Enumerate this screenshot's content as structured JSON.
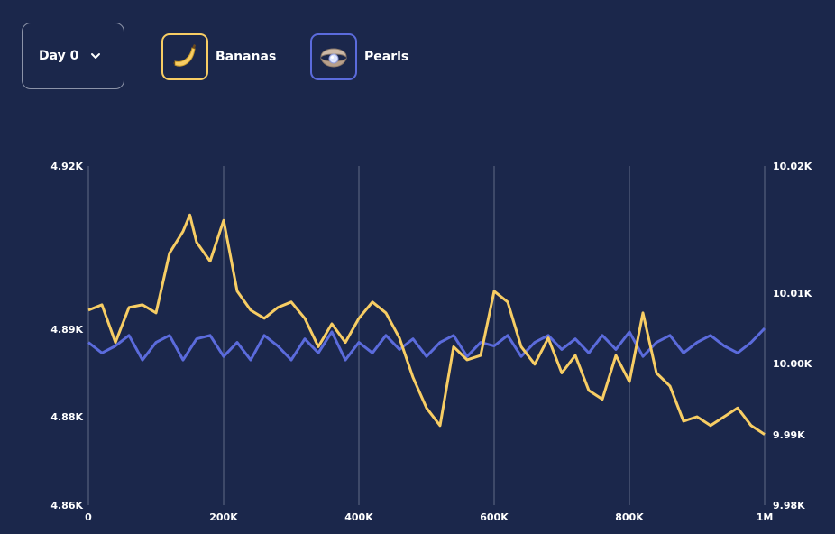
{
  "controls": {
    "day_label": "Day 0",
    "day_icon": "chevron-down-icon"
  },
  "legend": [
    {
      "label": "Bananas",
      "icon": "banana-icon",
      "color": "#f7cd64"
    },
    {
      "label": "Pearls",
      "icon": "pearl-oyster-icon",
      "color": "#5b6bdc"
    }
  ],
  "colors": {
    "background": "#1b274b",
    "grid": "#56607d",
    "bananas": "#f7cd64",
    "pearls": "#5b6bdc"
  },
  "chart_data": {
    "type": "line",
    "title": "",
    "xlabel": "",
    "ylabel": "",
    "xlim": [
      0,
      1000000
    ],
    "x_ticks": [
      0,
      200000,
      400000,
      600000,
      800000,
      1000000
    ],
    "x_tick_labels": [
      "0",
      "200K",
      "400K",
      "600K",
      "800K",
      "1M"
    ],
    "grid": "vertical",
    "y_left": {
      "series": "Bananas",
      "ticks": [
        4860,
        4880,
        4890,
        4920
      ],
      "tick_labels": [
        "4.86K",
        "4.88K",
        "4.89K",
        "4.92K"
      ]
    },
    "y_right": {
      "series": "Pearls",
      "ticks": [
        9980,
        9990,
        10000,
        10010,
        10020
      ],
      "tick_labels": [
        "9.98K",
        "9.99K",
        "10.00K",
        "10.01K",
        "10.02K"
      ]
    },
    "series": [
      {
        "name": "Bananas",
        "axis": "left",
        "x": [
          0,
          20000,
          40000,
          60000,
          80000,
          100000,
          120000,
          140000,
          150000,
          160000,
          180000,
          200000,
          220000,
          240000,
          260000,
          280000,
          300000,
          320000,
          340000,
          360000,
          380000,
          400000,
          420000,
          440000,
          460000,
          480000,
          500000,
          520000,
          540000,
          560000,
          580000,
          600000,
          620000,
          640000,
          660000,
          680000,
          700000,
          720000,
          740000,
          760000,
          780000,
          800000,
          820000,
          840000,
          860000,
          880000,
          900000,
          920000,
          940000,
          960000,
          980000,
          1000000
        ],
        "values": [
          4893.5,
          4894.5,
          4888.5,
          4894.0,
          4894.5,
          4893.0,
          4904.0,
          4908.0,
          4911.0,
          4906.0,
          4902.5,
          4910.0,
          4897.0,
          4893.5,
          4892.0,
          4894.0,
          4895.0,
          4892.0,
          4888.0,
          4891.0,
          4888.5,
          4892.0,
          4895.0,
          4893.0,
          4889.0,
          4884.5,
          4881.0,
          4878.0,
          4888.0,
          4886.5,
          4887.0,
          4897.0,
          4895.0,
          4888.0,
          4886.0,
          4889.0,
          4885.0,
          4887.0,
          4883.0,
          4882.0,
          4887.0,
          4884.0,
          4893.0,
          4885.0,
          4883.5,
          4879.0,
          4880.0,
          4878.0,
          4880.0,
          4881.0,
          4878.0,
          4876.0
        ]
      },
      {
        "name": "Pearls",
        "axis": "right",
        "x": [
          0,
          20000,
          40000,
          60000,
          80000,
          100000,
          120000,
          140000,
          160000,
          180000,
          200000,
          220000,
          240000,
          260000,
          280000,
          300000,
          320000,
          340000,
          360000,
          380000,
          400000,
          420000,
          440000,
          460000,
          480000,
          500000,
          520000,
          540000,
          560000,
          580000,
          600000,
          620000,
          640000,
          660000,
          680000,
          700000,
          720000,
          740000,
          760000,
          780000,
          800000,
          820000,
          840000,
          860000,
          880000,
          900000,
          920000,
          940000,
          960000,
          980000,
          1000000
        ],
        "values": [
          10003.0,
          10001.5,
          10002.5,
          10004.0,
          10000.5,
          10003.0,
          10004.0,
          10000.5,
          10003.5,
          10004.0,
          10001.0,
          10003.0,
          10000.5,
          10004.0,
          10002.5,
          10000.5,
          10003.5,
          10001.5,
          10004.5,
          10000.5,
          10003.0,
          10001.5,
          10004.0,
          10002.0,
          10003.5,
          10001.0,
          10003.0,
          10004.0,
          10001.0,
          10003.0,
          10002.5,
          10004.0,
          10001.0,
          10003.0,
          10004.0,
          10002.0,
          10003.5,
          10001.5,
          10004.0,
          10002.0,
          10004.5,
          10001.0,
          10003.0,
          10004.0,
          10001.5,
          10003.0,
          10004.0,
          10002.5,
          10001.5,
          10003.0,
          10005.0
        ]
      }
    ]
  }
}
